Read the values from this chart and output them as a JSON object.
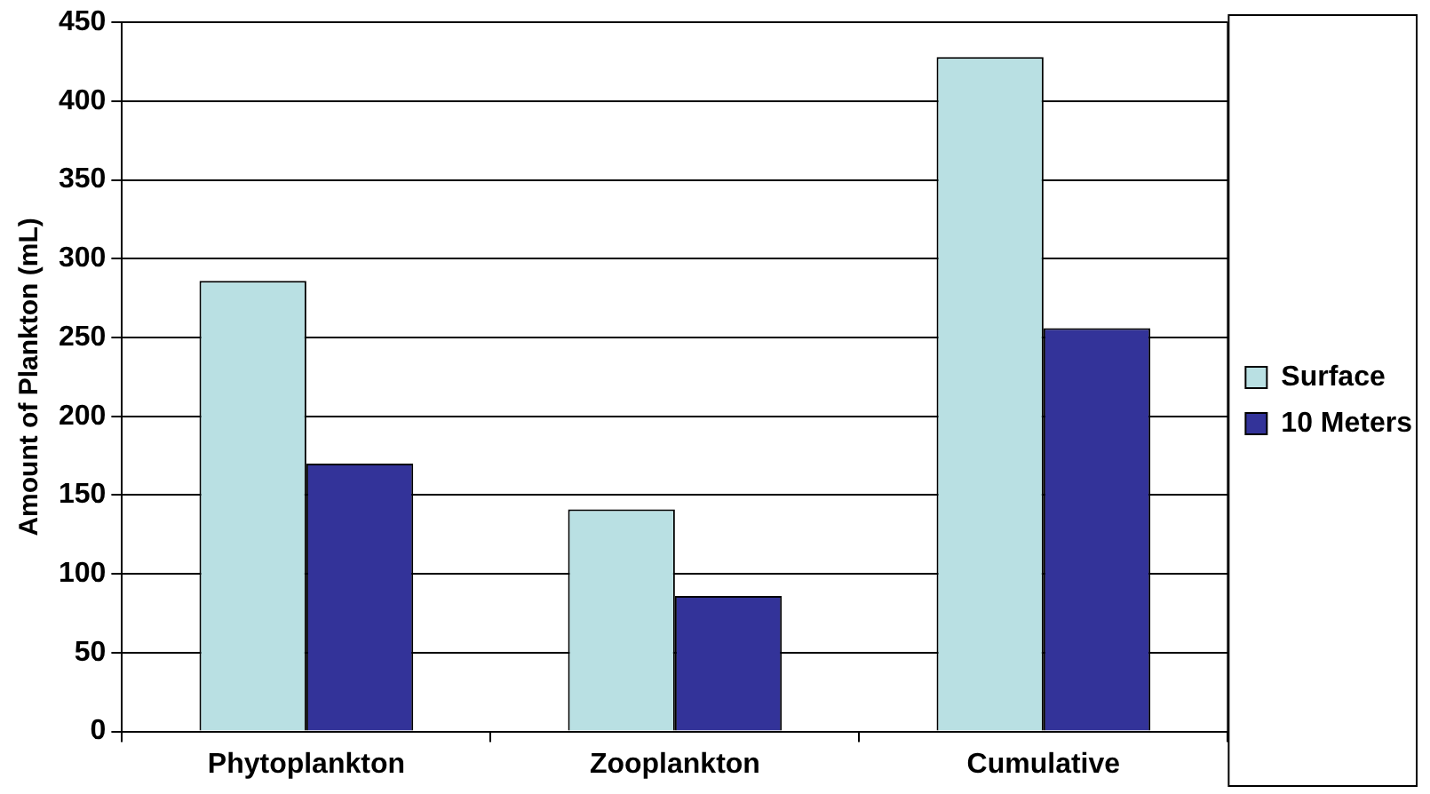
{
  "chart_data": {
    "type": "bar",
    "ylabel": "Amount of Plankton (mL)",
    "categories": [
      "Phytoplankton",
      "Zooplankton",
      "Cumulative"
    ],
    "series": [
      {
        "name": "Surface",
        "color": "#b9e0e3",
        "values": [
          286,
          141,
          428
        ]
      },
      {
        "name": "10 Meters",
        "color": "#333399",
        "values": [
          170,
          86,
          256
        ]
      }
    ],
    "ylim": [
      0,
      450
    ],
    "yticks": [
      0,
      50,
      100,
      150,
      200,
      250,
      300,
      350,
      400,
      450
    ],
    "grid": "y",
    "legend": "right"
  }
}
